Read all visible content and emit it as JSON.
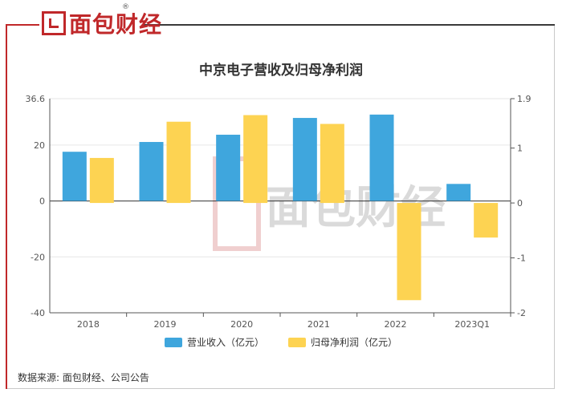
{
  "brand": {
    "name": "面包财经",
    "reg_mark": "®",
    "color": "#c0282a"
  },
  "source": "数据来源: 面包财经、公司公告",
  "chart_data": {
    "type": "bar",
    "title": "中京电子营收及归母净利润",
    "categories": [
      "2018",
      "2019",
      "2020",
      "2021",
      "2022",
      "2023Q1"
    ],
    "series": [
      {
        "name": "营业收入（亿元）",
        "axis": "left",
        "color": "#3fa6dd",
        "values": [
          17.6,
          21.1,
          23.7,
          29.7,
          30.9,
          6.1
        ]
      },
      {
        "name": "归母净利润（亿元）",
        "axis": "right",
        "color": "#fdd352",
        "values": [
          0.82,
          1.48,
          1.6,
          1.44,
          -1.77,
          -0.63
        ]
      }
    ],
    "y_left": {
      "min": -40,
      "max": 36.6,
      "ticks": [
        "36.6",
        "20",
        "0",
        "-20",
        "-40"
      ],
      "tick_values": [
        36.6,
        20,
        0,
        -20,
        -40
      ]
    },
    "y_right": {
      "min": -2,
      "max": 1.9,
      "ticks": [
        "1.9",
        "1",
        "0",
        "-1",
        "-2"
      ],
      "tick_values": [
        1.9,
        1,
        0,
        -1,
        -2
      ]
    },
    "grid": true,
    "legend": "bottom"
  }
}
